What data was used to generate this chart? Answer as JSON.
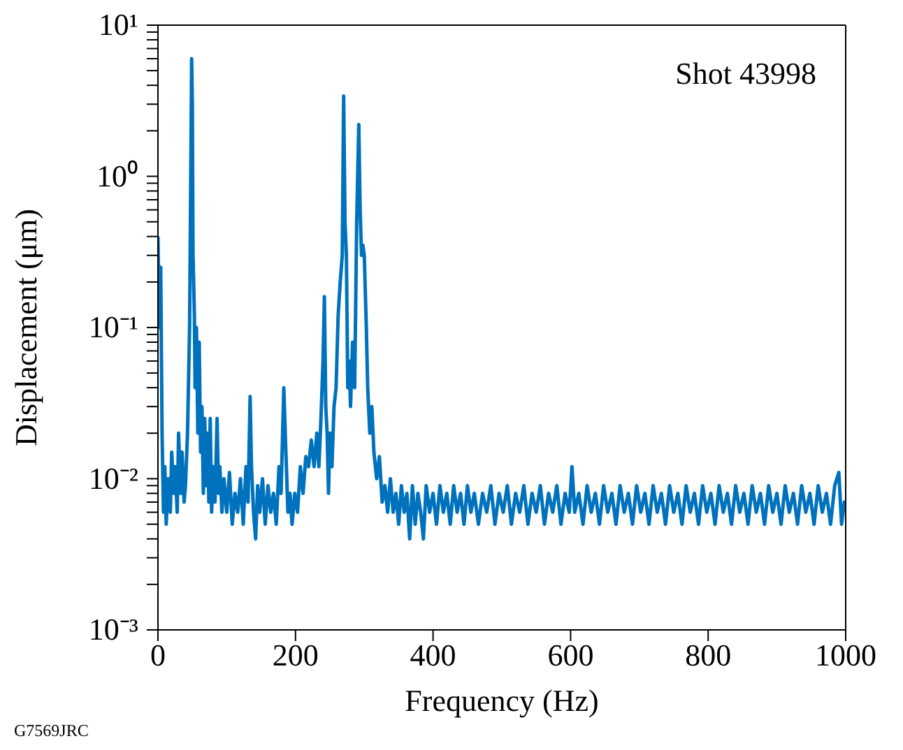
{
  "chart_data": {
    "type": "line",
    "xlabel": "Frequency (Hz)",
    "ylabel": "Displacement (μm)",
    "annotations": [
      "Shot 43998",
      "G7569JRC"
    ],
    "log": "y",
    "marker": "none",
    "line_style": "solid",
    "xlim": [
      0,
      1000
    ],
    "xticks": [
      0,
      200,
      400,
      600,
      800,
      1000
    ],
    "ylim": [
      0.001,
      10
    ],
    "yticks": [
      {
        "value": 0.001,
        "label": "10⁻³"
      },
      {
        "value": 0.002,
        "label": null
      },
      {
        "value": 0.003,
        "label": null
      },
      {
        "value": 0.004,
        "label": null
      },
      {
        "value": 0.005,
        "label": null
      },
      {
        "value": 0.006,
        "label": null
      },
      {
        "value": 0.007,
        "label": null
      },
      {
        "value": 0.008,
        "label": null
      },
      {
        "value": 0.009,
        "label": null
      },
      {
        "value": 0.01,
        "label": "10⁻²"
      },
      {
        "value": 0.02,
        "label": null
      },
      {
        "value": 0.03,
        "label": null
      },
      {
        "value": 0.04,
        "label": null
      },
      {
        "value": 0.05,
        "label": null
      },
      {
        "value": 0.06,
        "label": null
      },
      {
        "value": 0.07,
        "label": null
      },
      {
        "value": 0.08,
        "label": null
      },
      {
        "value": 0.09,
        "label": null
      },
      {
        "value": 0.1,
        "label": "10⁻¹"
      },
      {
        "value": 0.2,
        "label": null
      },
      {
        "value": 0.3,
        "label": null
      },
      {
        "value": 0.4,
        "label": null
      },
      {
        "value": 0.5,
        "label": null
      },
      {
        "value": 0.6,
        "label": null
      },
      {
        "value": 0.7,
        "label": null
      },
      {
        "value": 0.8,
        "label": null
      },
      {
        "value": 0.9,
        "label": null
      },
      {
        "value": 1,
        "label": "10⁰"
      },
      {
        "value": 2,
        "label": null
      },
      {
        "value": 3,
        "label": null
      },
      {
        "value": 4,
        "label": null
      },
      {
        "value": 5,
        "label": null
      },
      {
        "value": 6,
        "label": null
      },
      {
        "value": 7,
        "label": null
      },
      {
        "value": 8,
        "label": null
      },
      {
        "value": 9,
        "label": null
      },
      {
        "value": 10,
        "label": "10¹"
      }
    ],
    "series": [
      {
        "color": "#0072bd",
        "x": [
          0,
          2,
          4,
          6,
          8,
          10,
          12,
          15,
          18,
          20,
          23,
          25,
          28,
          30,
          33,
          35,
          38,
          40,
          43,
          46,
          48,
          49,
          50,
          51,
          53,
          54,
          56,
          58,
          60,
          62,
          64,
          66,
          68,
          70,
          72,
          74,
          76,
          78,
          80,
          83,
          86,
          88,
          90,
          93,
          96,
          100,
          104,
          108,
          112,
          116,
          120,
          124,
          128,
          131,
          134,
          136,
          139,
          142,
          145,
          148,
          152,
          156,
          160,
          164,
          168,
          172,
          176,
          179,
          183,
          186,
          189,
          192,
          195,
          199,
          203,
          207,
          211,
          215,
          219,
          223,
          227,
          231,
          234,
          237,
          240,
          242,
          244,
          246,
          248,
          250,
          253,
          256,
          259,
          262,
          265,
          268,
          270,
          272,
          274,
          276,
          278,
          280,
          283,
          286,
          289,
          292,
          294,
          296,
          298,
          300,
          303,
          305,
          308,
          311,
          314,
          318,
          322,
          326,
          330,
          334,
          338,
          342,
          346,
          350,
          354,
          358,
          362,
          366,
          370,
          374,
          378,
          382,
          386,
          390,
          395,
          400,
          405,
          410,
          415,
          420,
          425,
          430,
          435,
          440,
          445,
          450,
          455,
          460,
          466,
          472,
          478,
          484,
          490,
          496,
          502,
          508,
          514,
          520,
          526,
          532,
          538,
          544,
          550,
          556,
          562,
          568,
          574,
          580,
          586,
          592,
          598,
          602,
          606,
          612,
          618,
          624,
          630,
          636,
          642,
          648,
          654,
          660,
          666,
          672,
          678,
          684,
          690,
          696,
          702,
          708,
          714,
          720,
          726,
          732,
          738,
          744,
          750,
          756,
          762,
          768,
          774,
          780,
          786,
          792,
          798,
          804,
          810,
          816,
          822,
          828,
          834,
          840,
          846,
          852,
          858,
          864,
          870,
          876,
          882,
          888,
          894,
          900,
          906,
          912,
          918,
          924,
          930,
          936,
          942,
          948,
          954,
          960,
          966,
          972,
          978,
          984,
          990,
          994,
          998,
          1000
        ],
        "values": [
          0.4,
          0.1,
          0.25,
          0.02,
          0.006,
          0.012,
          0.005,
          0.01,
          0.006,
          0.015,
          0.008,
          0.012,
          0.006,
          0.02,
          0.008,
          0.015,
          0.007,
          0.009,
          0.02,
          0.1,
          1.5,
          6.0,
          3,
          0.3,
          0.12,
          0.04,
          0.1,
          0.02,
          0.08,
          0.015,
          0.03,
          0.008,
          0.025,
          0.009,
          0.02,
          0.007,
          0.025,
          0.006,
          0.012,
          0.007,
          0.025,
          0.008,
          0.012,
          0.006,
          0.01,
          0.006,
          0.011,
          0.005,
          0.008,
          0.006,
          0.01,
          0.005,
          0.012,
          0.007,
          0.035,
          0.012,
          0.006,
          0.004,
          0.009,
          0.006,
          0.01,
          0.005,
          0.009,
          0.006,
          0.008,
          0.005,
          0.012,
          0.008,
          0.04,
          0.015,
          0.006,
          0.008,
          0.005,
          0.008,
          0.006,
          0.012,
          0.008,
          0.014,
          0.012,
          0.018,
          0.012,
          0.02,
          0.012,
          0.025,
          0.06,
          0.16,
          0.03,
          0.02,
          0.008,
          0.02,
          0.012,
          0.03,
          0.04,
          0.12,
          0.2,
          0.3,
          3.4,
          0.5,
          0.3,
          0.04,
          0.06,
          0.03,
          0.08,
          0.04,
          0.5,
          2.2,
          0.6,
          0.3,
          0.35,
          0.3,
          0.1,
          0.04,
          0.02,
          0.03,
          0.015,
          0.01,
          0.014,
          0.007,
          0.009,
          0.006,
          0.01,
          0.006,
          0.008,
          0.005,
          0.009,
          0.006,
          0.008,
          0.004,
          0.009,
          0.005,
          0.008,
          0.006,
          0.004,
          0.009,
          0.006,
          0.008,
          0.005,
          0.009,
          0.006,
          0.008,
          0.005,
          0.009,
          0.006,
          0.008,
          0.005,
          0.009,
          0.006,
          0.008,
          0.005,
          0.008,
          0.006,
          0.009,
          0.005,
          0.008,
          0.006,
          0.009,
          0.005,
          0.008,
          0.006,
          0.009,
          0.005,
          0.008,
          0.006,
          0.009,
          0.005,
          0.008,
          0.006,
          0.009,
          0.005,
          0.008,
          0.006,
          0.012,
          0.006,
          0.008,
          0.005,
          0.009,
          0.006,
          0.008,
          0.005,
          0.009,
          0.006,
          0.008,
          0.005,
          0.009,
          0.006,
          0.008,
          0.005,
          0.009,
          0.006,
          0.008,
          0.005,
          0.009,
          0.006,
          0.008,
          0.005,
          0.009,
          0.006,
          0.008,
          0.005,
          0.009,
          0.006,
          0.008,
          0.005,
          0.009,
          0.006,
          0.008,
          0.005,
          0.009,
          0.006,
          0.008,
          0.005,
          0.009,
          0.006,
          0.008,
          0.005,
          0.009,
          0.006,
          0.008,
          0.005,
          0.009,
          0.006,
          0.008,
          0.005,
          0.009,
          0.006,
          0.008,
          0.005,
          0.009,
          0.006,
          0.008,
          0.005,
          0.009,
          0.006,
          0.008,
          0.005,
          0.009,
          0.011,
          0.005,
          0.007,
          0.006
        ]
      }
    ]
  }
}
